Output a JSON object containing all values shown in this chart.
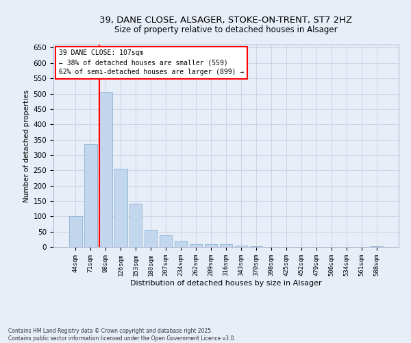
{
  "title_line1": "39, DANE CLOSE, ALSAGER, STOKE-ON-TRENT, ST7 2HZ",
  "title_line2": "Size of property relative to detached houses in Alsager",
  "xlabel": "Distribution of detached houses by size in Alsager",
  "ylabel": "Number of detached properties",
  "bar_color": "#c2d7ee",
  "bar_edge_color": "#8ab4d4",
  "grid_color": "#ccd5e5",
  "background_color": "#e8eef8",
  "categories": [
    "44sqm",
    "71sqm",
    "98sqm",
    "126sqm",
    "153sqm",
    "180sqm",
    "207sqm",
    "234sqm",
    "262sqm",
    "289sqm",
    "316sqm",
    "343sqm",
    "370sqm",
    "398sqm",
    "425sqm",
    "452sqm",
    "479sqm",
    "506sqm",
    "534sqm",
    "561sqm",
    "588sqm"
  ],
  "values": [
    100,
    335,
    505,
    255,
    140,
    55,
    38,
    20,
    8,
    10,
    9,
    5,
    3,
    1,
    1,
    0,
    0,
    0,
    0,
    0,
    3
  ],
  "ylim": [
    0,
    660
  ],
  "yticks": [
    0,
    50,
    100,
    150,
    200,
    250,
    300,
    350,
    400,
    450,
    500,
    550,
    600,
    650
  ],
  "vline_index": 2,
  "annotation_title": "39 DANE CLOSE: 107sqm",
  "annotation_line1": "← 38% of detached houses are smaller (559)",
  "annotation_line2": "62% of semi-detached houses are larger (899) →",
  "vline_color": "red",
  "footnote_line1": "Contains HM Land Registry data © Crown copyright and database right 2025.",
  "footnote_line2": "Contains public sector information licensed under the Open Government Licence v3.0."
}
